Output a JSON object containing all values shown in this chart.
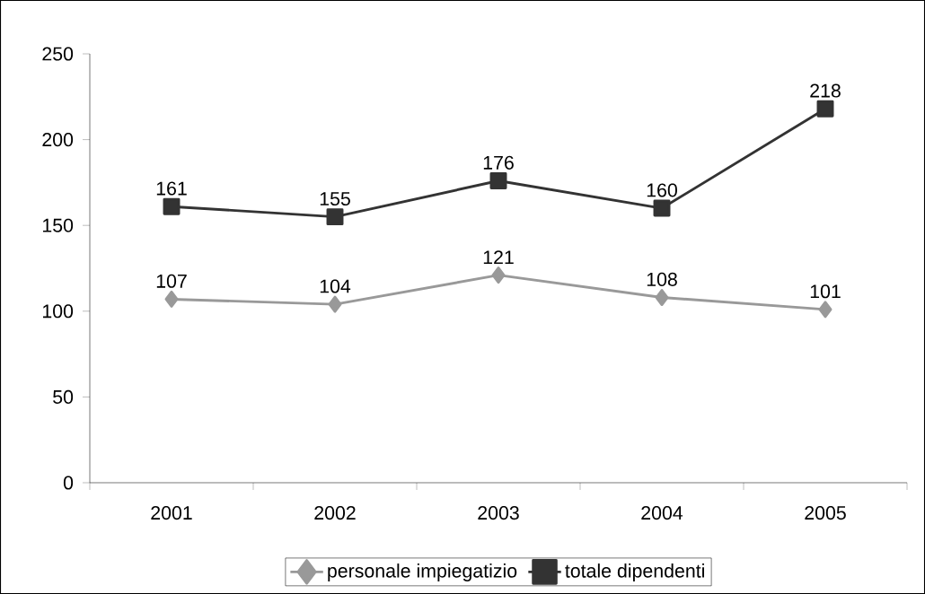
{
  "chart_data": {
    "type": "line",
    "categories": [
      "2001",
      "2002",
      "2003",
      "2004",
      "2005"
    ],
    "series": [
      {
        "name": "personale impiegatizio",
        "color": "#999999",
        "marker": "diamond",
        "values": [
          107,
          104,
          121,
          108,
          101
        ]
      },
      {
        "name": "totale dipendenti",
        "color": "#333333",
        "marker": "square",
        "values": [
          161,
          155,
          176,
          160,
          218
        ]
      }
    ],
    "ylim": [
      0,
      250
    ],
    "yticks": [
      0,
      50,
      100,
      150,
      200,
      250
    ],
    "data_labels": true,
    "legend": "bottom",
    "grid": false,
    "line_style": "solid"
  }
}
